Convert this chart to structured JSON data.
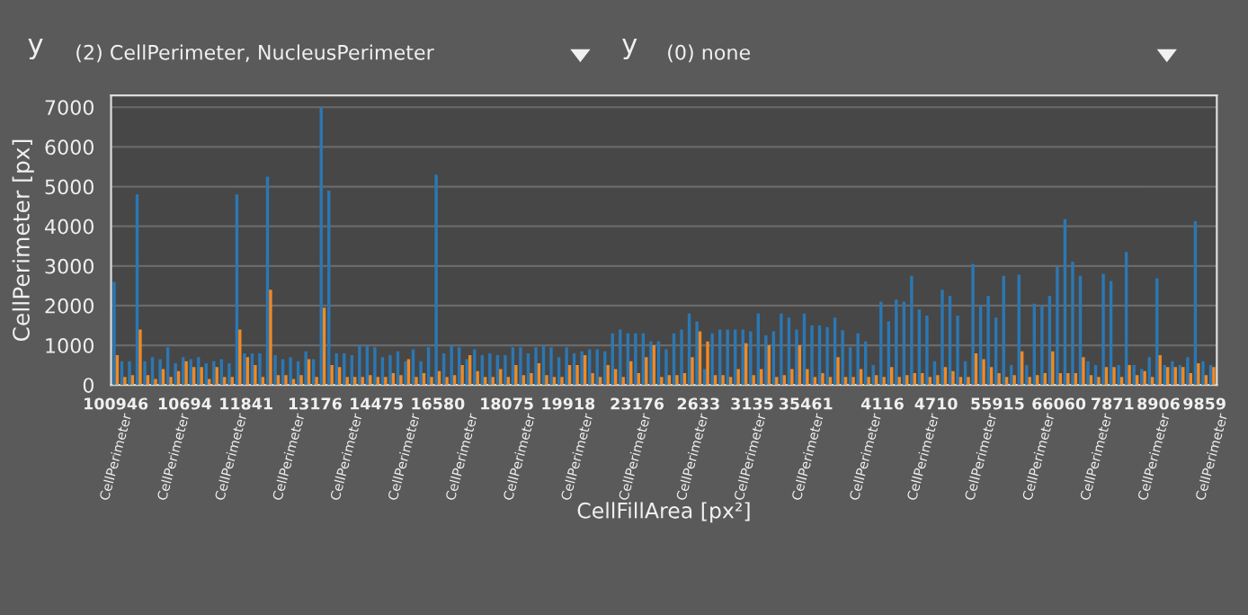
{
  "chart_data": {
    "type": "bar",
    "xlabel": "CellFillArea [px²]",
    "ylabel": "CellPerimeter [px]",
    "categories": [
      "100946",
      null,
      null,
      null,
      null,
      null,
      null,
      null,
      null,
      "10694",
      null,
      null,
      null,
      null,
      null,
      null,
      null,
      "11841",
      null,
      null,
      null,
      null,
      null,
      null,
      null,
      null,
      "13176",
      null,
      null,
      null,
      null,
      null,
      null,
      null,
      "14475",
      null,
      null,
      null,
      null,
      null,
      null,
      null,
      "16580",
      null,
      null,
      null,
      null,
      null,
      null,
      null,
      null,
      "18075",
      null,
      null,
      null,
      null,
      null,
      null,
      null,
      "19918",
      null,
      null,
      null,
      null,
      null,
      null,
      null,
      null,
      "23176",
      null,
      null,
      null,
      null,
      null,
      null,
      null,
      "2633",
      null,
      null,
      null,
      null,
      null,
      null,
      "3135",
      null,
      null,
      null,
      null,
      null,
      null,
      "35461",
      null,
      null,
      null,
      null,
      null,
      null,
      null,
      null,
      null,
      "4116",
      null,
      null,
      null,
      null,
      null,
      null,
      "4710",
      null,
      null,
      null,
      null,
      null,
      null,
      null,
      "55915",
      null,
      null,
      null,
      null,
      null,
      null,
      null,
      "66060",
      null,
      null,
      null,
      null,
      null,
      null,
      "7871",
      null,
      null,
      null,
      null,
      null,
      "8906",
      null,
      null,
      null,
      null,
      null,
      "9859",
      null
    ],
    "series": [
      {
        "color": "#2b78b4",
        "values": [
          2600,
          600,
          600,
          4800,
          600,
          700,
          650,
          950,
          550,
          700,
          650,
          700,
          550,
          600,
          650,
          550,
          4800,
          800,
          800,
          800,
          5250,
          750,
          650,
          700,
          600,
          850,
          650,
          7000,
          4900,
          800,
          800,
          750,
          1000,
          1000,
          950,
          700,
          750,
          850,
          600,
          900,
          600,
          950,
          5300,
          800,
          1000,
          950,
          650,
          900,
          750,
          800,
          750,
          750,
          950,
          950,
          800,
          950,
          1000,
          950,
          700,
          950,
          800,
          850,
          900,
          900,
          850,
          1300,
          1400,
          1300,
          1300,
          1300,
          1100,
          1100,
          900,
          1300,
          1400,
          1800,
          1600,
          400,
          1300,
          1400,
          1400,
          1400,
          1400,
          1350,
          1800,
          1250,
          1350,
          1800,
          1700,
          1400,
          1800,
          1500,
          1500,
          1460,
          1700,
          1380,
          950,
          1300,
          1100,
          500,
          2100,
          1600,
          2150,
          2100,
          2750,
          1900,
          1750,
          600,
          2400,
          2250,
          1750,
          600,
          3050,
          2000,
          2250,
          1700,
          2750,
          500,
          2780,
          500,
          2050,
          2000,
          2250,
          2970,
          4180,
          3110,
          2750,
          600,
          500,
          2800,
          2620,
          500,
          3350,
          500,
          400,
          700,
          2690,
          500,
          600,
          500,
          700,
          4130,
          600,
          500
        ]
      },
      {
        "color": "#f08a24",
        "values": [
          750,
          200,
          250,
          1400,
          250,
          150,
          400,
          200,
          350,
          600,
          450,
          450,
          150,
          450,
          200,
          200,
          1400,
          700,
          500,
          200,
          2400,
          250,
          250,
          150,
          250,
          650,
          200,
          1950,
          500,
          450,
          200,
          200,
          200,
          250,
          200,
          200,
          300,
          250,
          650,
          200,
          300,
          200,
          350,
          200,
          250,
          500,
          750,
          350,
          200,
          200,
          400,
          200,
          500,
          250,
          300,
          550,
          250,
          200,
          200,
          500,
          500,
          750,
          300,
          200,
          500,
          400,
          200,
          600,
          300,
          700,
          1000,
          200,
          250,
          250,
          300,
          700,
          1350,
          1100,
          250,
          250,
          200,
          400,
          1050,
          250,
          400,
          1000,
          200,
          250,
          400,
          1000,
          400,
          200,
          300,
          200,
          700,
          200,
          200,
          400,
          200,
          250,
          200,
          450,
          200,
          250,
          300,
          300,
          200,
          250,
          450,
          350,
          200,
          200,
          800,
          650,
          450,
          300,
          200,
          250,
          850,
          200,
          250,
          300,
          850,
          300,
          300,
          300,
          700,
          250,
          200,
          450,
          450,
          200,
          500,
          250,
          350,
          200,
          750,
          450,
          450,
          450,
          300,
          550,
          250,
          450
        ]
      }
    ],
    "ylim": [
      0,
      7300
    ],
    "yticks": [
      0,
      1000,
      2000,
      3000,
      4000,
      5000,
      6000,
      7000
    ],
    "grid": "y",
    "annotations": [
      "y",
      "(2) CellPerimeter, NucleusPerimeter",
      "y",
      "(0) none",
      "CellPerimeter",
      "CellPerimeter",
      "CellPerimeter",
      "CellPerimeter",
      "CellPerimeter",
      "CellPerimeter",
      "CellPerimeter",
      "CellPerimeter",
      "CellPerimeter",
      "CellPerimeter",
      "CellPerimeter",
      "CellPerimeter",
      "CellPerimeter",
      "CellPerimeter",
      "CellPerimeter",
      "CellPerimeter",
      "CellPerimeter",
      "CellPerimeter",
      "CellPerimeter",
      "CellPerimeter"
    ]
  }
}
